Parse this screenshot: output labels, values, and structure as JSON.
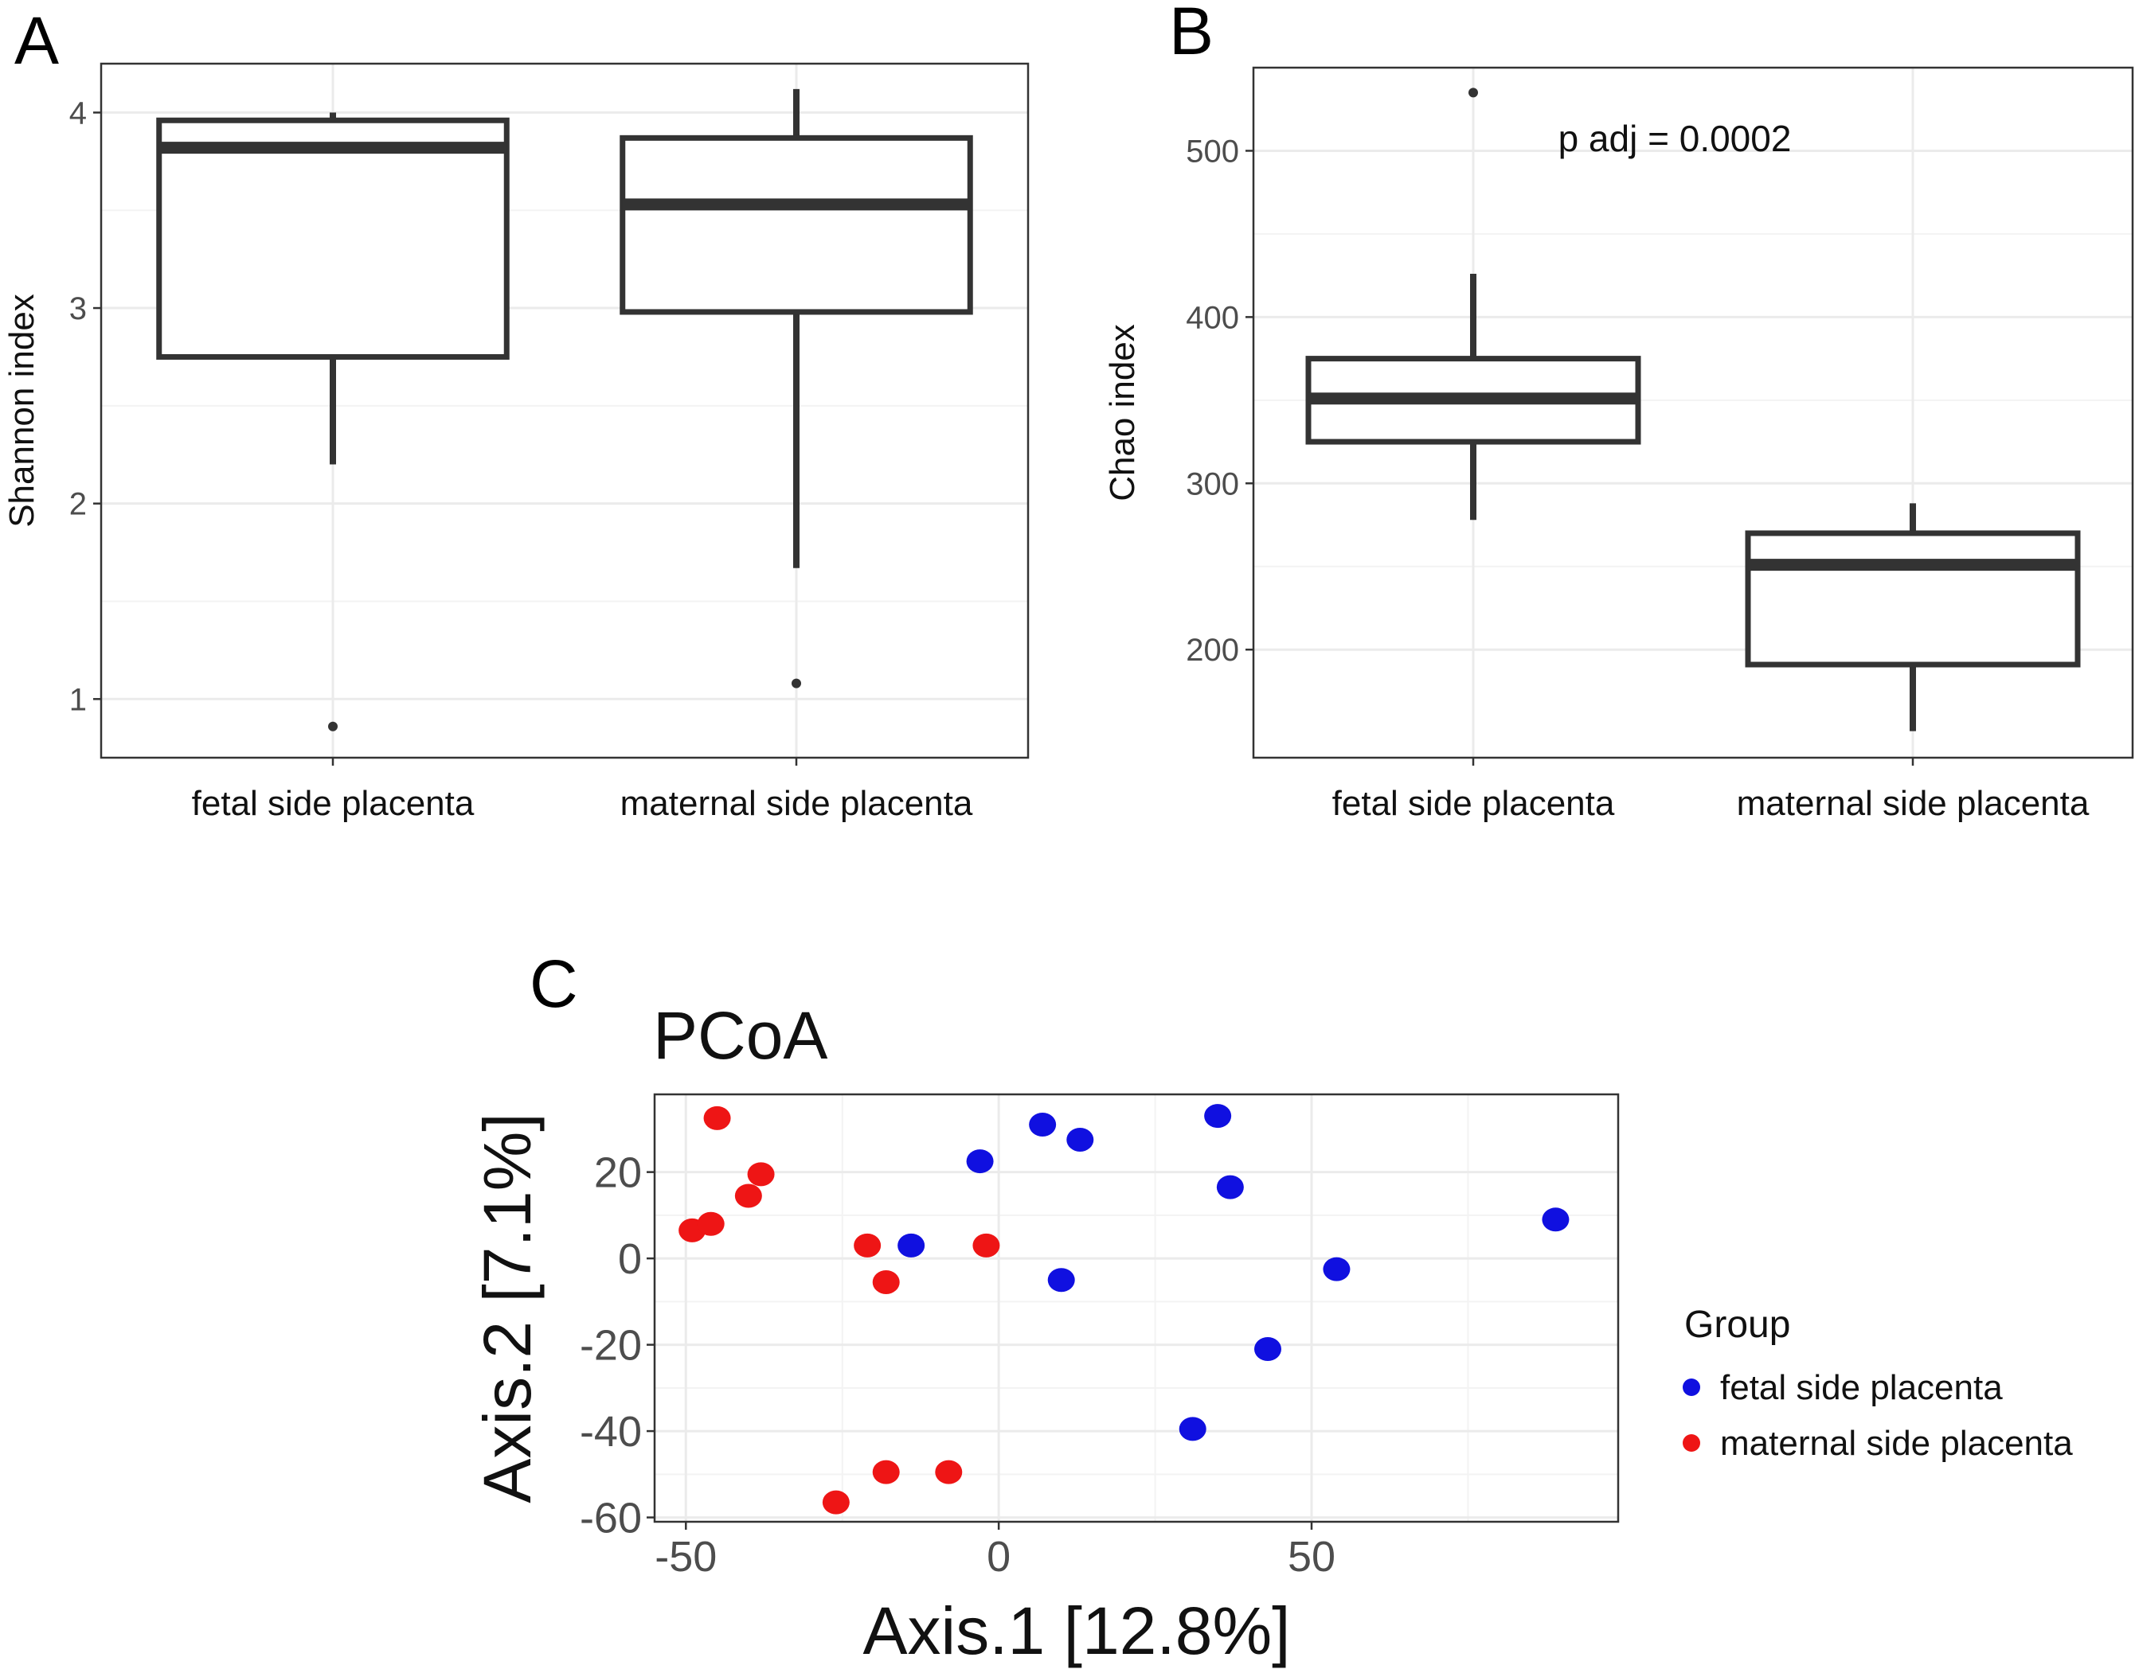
{
  "panel_labels": {
    "a": "A",
    "b": "B",
    "c": "C"
  },
  "colors": {
    "fetal": "#1010e0",
    "maternal": "#ee1515",
    "box": "#333333",
    "grid": "#ebebeb",
    "axis_text": "#4d4d4d"
  },
  "chart_data": [
    {
      "panel": "A",
      "type": "box",
      "ylabel": "Shannon index",
      "xlabel": "",
      "ylim": [
        0.7,
        4.25
      ],
      "yticks": [
        1,
        2,
        3,
        4
      ],
      "ytick_labels": [
        "1",
        "2",
        "3",
        "4"
      ],
      "annotation": "",
      "groups": [
        {
          "name": "fetal side placenta",
          "whisker_low": 2.2,
          "q1": 2.75,
          "median": 3.82,
          "q3": 3.96,
          "whisker_high": 4.0,
          "outliers": [
            0.86
          ]
        },
        {
          "name": "maternal side placenta",
          "whisker_low": 1.67,
          "q1": 2.98,
          "median": 3.53,
          "q3": 3.87,
          "whisker_high": 4.12,
          "outliers": [
            1.08
          ]
        }
      ]
    },
    {
      "panel": "B",
      "type": "box",
      "ylabel": "Chao index",
      "xlabel": "",
      "ylim": [
        135,
        550
      ],
      "yticks": [
        200,
        300,
        400,
        500
      ],
      "ytick_labels": [
        "200",
        "300",
        "400",
        "500"
      ],
      "annotation": "p adj = 0.0002",
      "groups": [
        {
          "name": "fetal side placenta",
          "whisker_low": 278,
          "q1": 325,
          "median": 351,
          "q3": 375,
          "whisker_high": 426,
          "outliers": [
            535
          ]
        },
        {
          "name": "maternal side placenta",
          "whisker_low": 151,
          "q1": 191,
          "median": 251,
          "q3": 270,
          "whisker_high": 288,
          "outliers": []
        }
      ]
    },
    {
      "panel": "C",
      "type": "scatter",
      "title": "PCoA",
      "xlabel": "Axis.1   [12.8%]",
      "ylabel": "Axis.2   [7.1%]",
      "xlim": [
        -55,
        99
      ],
      "ylim": [
        -61,
        38
      ],
      "xticks": [
        -50,
        0,
        50
      ],
      "xtick_labels": [
        "-50",
        "0",
        "50"
      ],
      "yticks": [
        -60,
        -40,
        -20,
        0,
        20
      ],
      "ytick_labels": [
        "-60",
        "-40",
        "-20",
        "0",
        "20"
      ],
      "legend_title": "Group",
      "series": [
        {
          "name": "fetal side placenta",
          "color": "#1010e0",
          "points": [
            [
              7,
              31
            ],
            [
              13,
              27.5
            ],
            [
              -3,
              22.5
            ],
            [
              35,
              33
            ],
            [
              37,
              16.5
            ],
            [
              89,
              9
            ],
            [
              -14,
              3
            ],
            [
              10,
              -5
            ],
            [
              54,
              -2.5
            ],
            [
              43,
              -21
            ],
            [
              31,
              -39.5
            ]
          ]
        },
        {
          "name": "maternal side placenta",
          "color": "#ee1515",
          "points": [
            [
              -45,
              32.5
            ],
            [
              -38,
              19.5
            ],
            [
              -40,
              14.5
            ],
            [
              -49,
              6.5
            ],
            [
              -46,
              8
            ],
            [
              -21,
              3
            ],
            [
              -2,
              3
            ],
            [
              -18,
              -5.5
            ],
            [
              -18,
              -49.5
            ],
            [
              -8,
              -49.5
            ],
            [
              -26,
              -56.5
            ]
          ]
        }
      ]
    }
  ]
}
